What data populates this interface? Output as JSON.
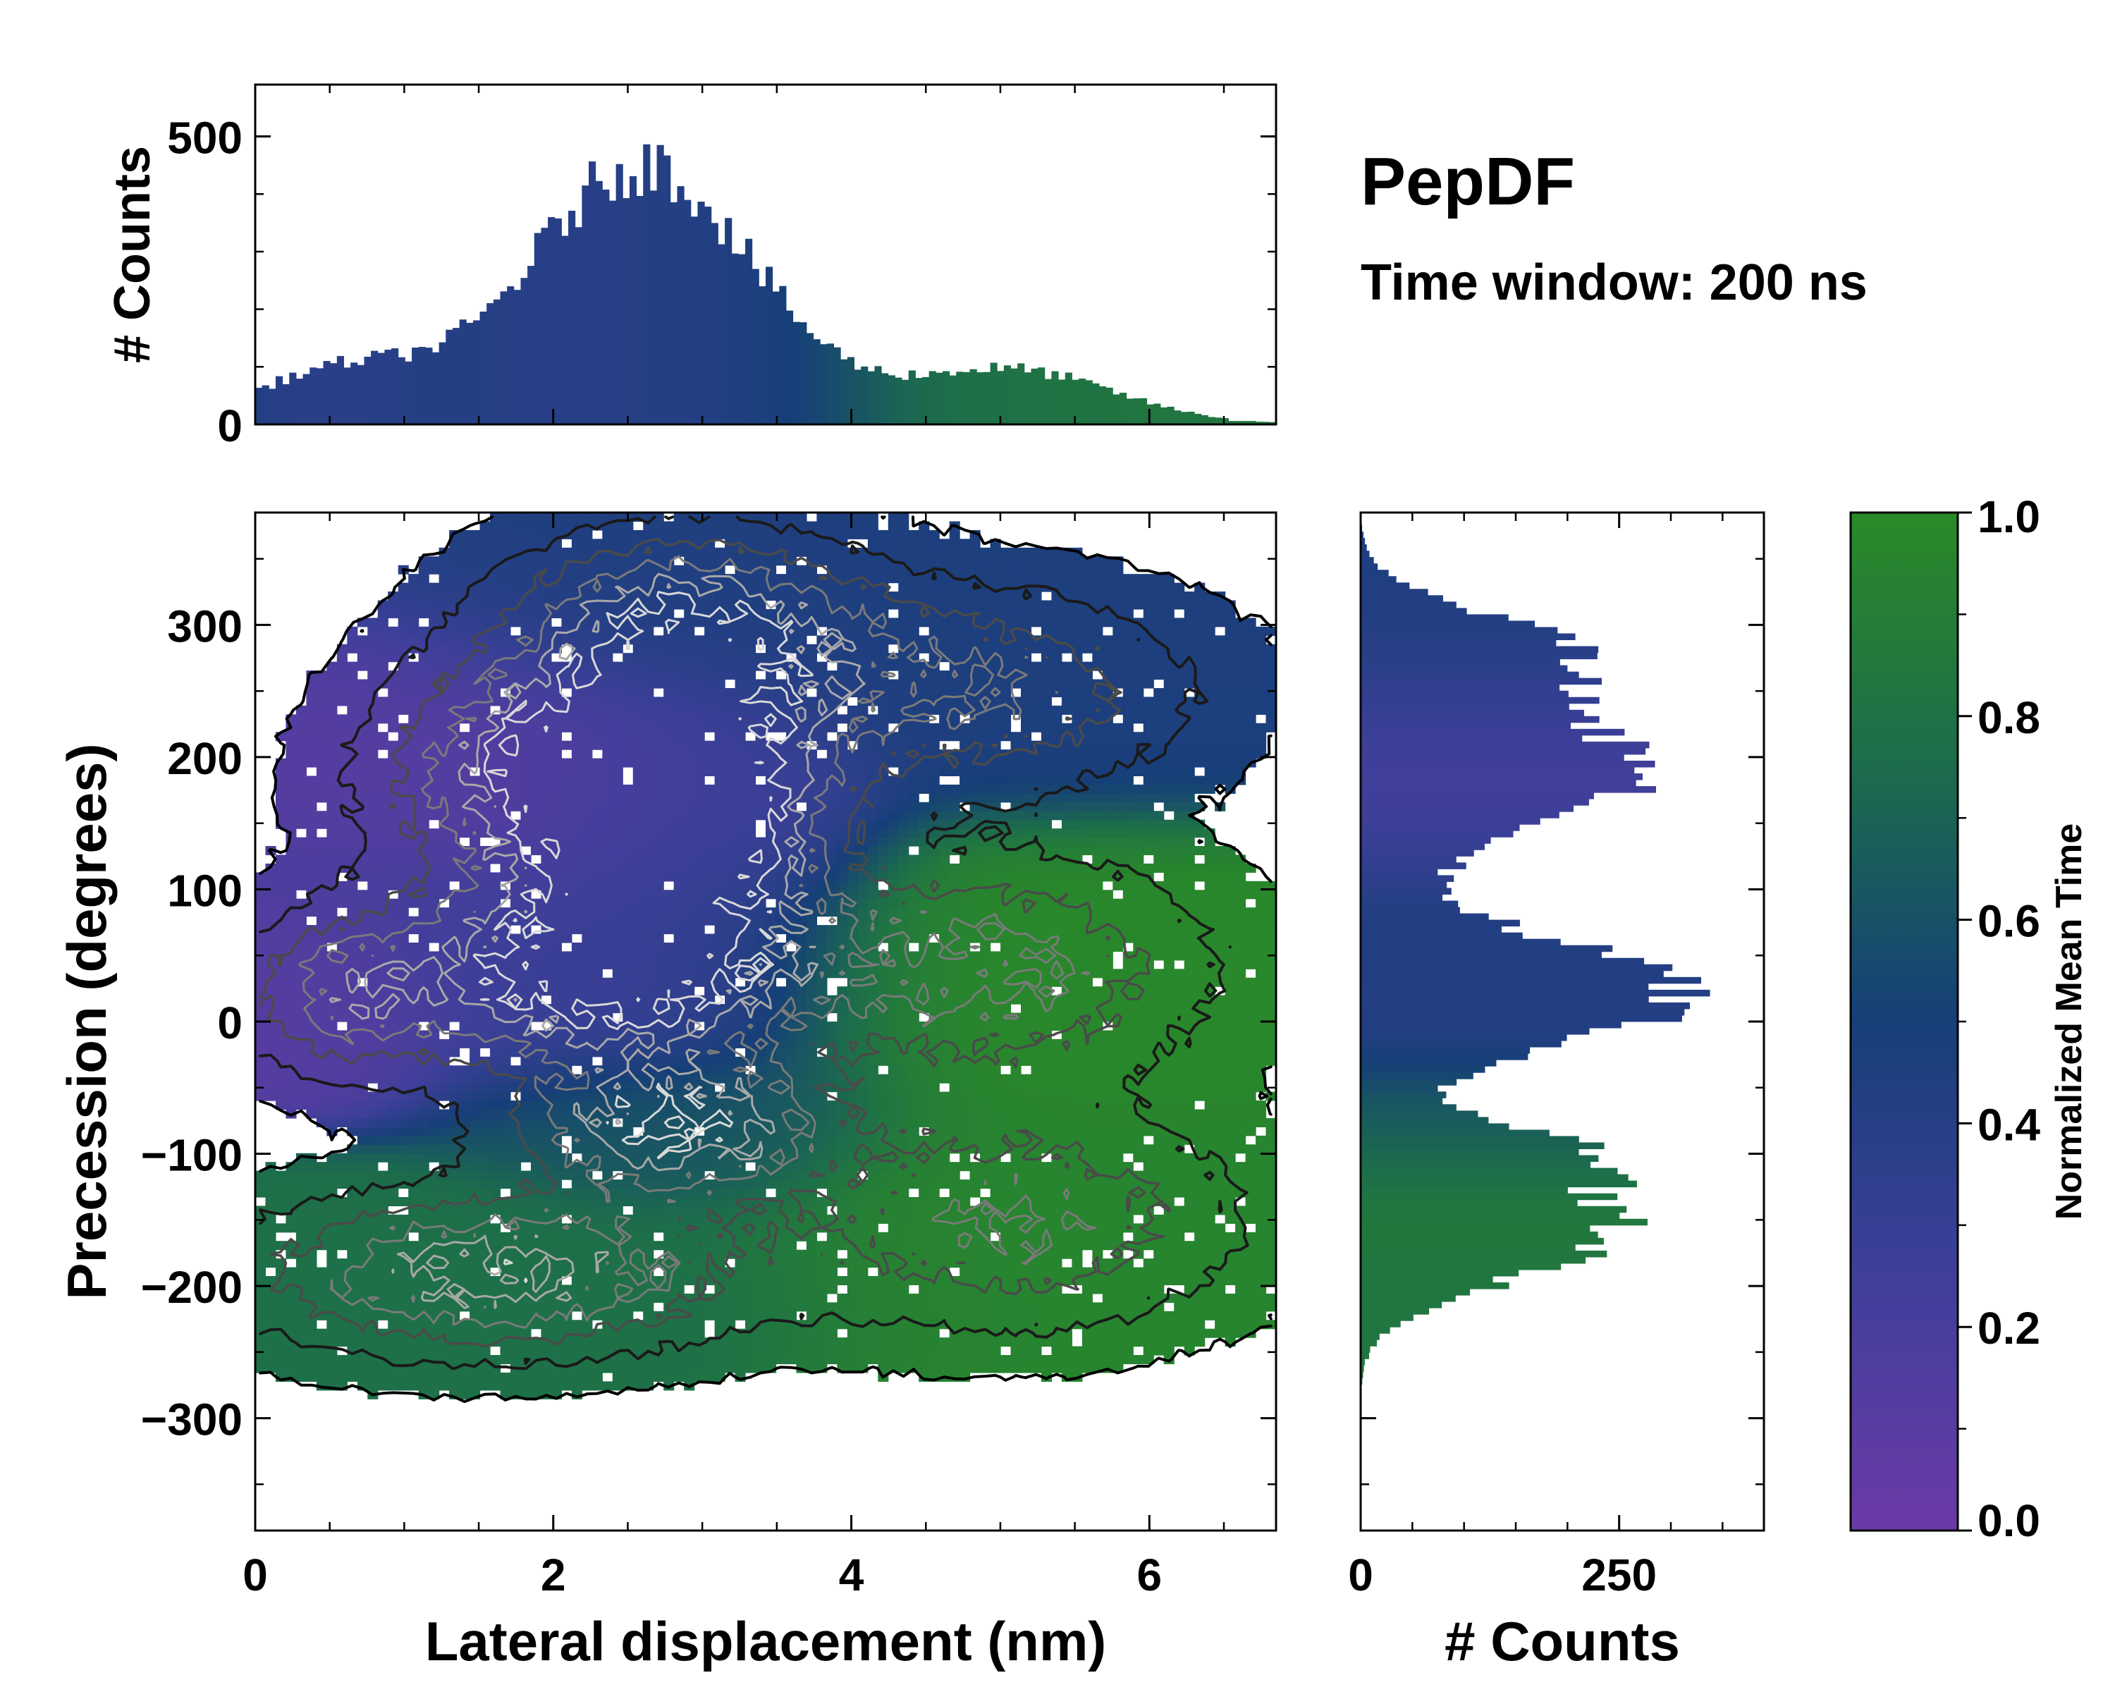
{
  "chart_data": {
    "type": "heatmap",
    "title": "PepDF",
    "subtitle": "Time window: 200 ns",
    "colormap": {
      "low_color": "#6b3aa6",
      "mid_color": "#1e4a86",
      "high_color": "#2a8a28",
      "stops": [
        {
          "v": 0.0,
          "color": "#6b3aa6"
        },
        {
          "v": 0.25,
          "color": "#3f3f9a"
        },
        {
          "v": 0.5,
          "color": "#163f78"
        },
        {
          "v": 0.75,
          "color": "#1c6c4c"
        },
        {
          "v": 1.0,
          "color": "#2a8a28"
        }
      ]
    },
    "main": {
      "xlabel": "Lateral displacement (nm)",
      "ylabel": "Precession (degrees)",
      "xlim": [
        0,
        6.85
      ],
      "ylim": [
        -385,
        385
      ],
      "xticks": [
        0,
        2,
        4,
        6
      ],
      "yticks": [
        300,
        200,
        100,
        0,
        -100,
        -200,
        -300
      ],
      "xtick_labels": [
        "0",
        "2",
        "4",
        "6"
      ],
      "ytick_labels": [
        "300",
        "200",
        "100",
        "0",
        "−100",
        "−200",
        "−300"
      ],
      "clusters": [
        {
          "name": "upper-right-blue",
          "x": 4.8,
          "y": 250,
          "sx": 1.0,
          "sy": 50,
          "mt": 0.46,
          "peak": 0.5
        },
        {
          "name": "top-blue",
          "x": 2.9,
          "y": 300,
          "sx": 0.8,
          "sy": 45,
          "mt": 0.45,
          "peak": 0.8
        },
        {
          "name": "purple-left",
          "x": 2.1,
          "y": 190,
          "sx": 0.8,
          "sy": 55,
          "mt": 0.12,
          "peak": 0.9
        },
        {
          "name": "central-dense",
          "x": 2.9,
          "y": 160,
          "sx": 0.6,
          "sy": 60,
          "mt": 0.3,
          "peak": 1.0
        },
        {
          "name": "mid-purple",
          "x": 2.3,
          "y": 40,
          "sx": 0.9,
          "sy": 50,
          "mt": 0.28,
          "peak": 1.0
        },
        {
          "name": "left-purple",
          "x": 0.6,
          "y": 20,
          "sx": 0.5,
          "sy": 40,
          "mt": 0.1,
          "peak": 0.5
        },
        {
          "name": "teal-middle",
          "x": 2.8,
          "y": -80,
          "sx": 0.7,
          "sy": 35,
          "mt": 0.62,
          "peak": 0.8
        },
        {
          "name": "green-right",
          "x": 4.9,
          "y": 40,
          "sx": 1.0,
          "sy": 55,
          "mt": 0.98,
          "peak": 0.55
        },
        {
          "name": "green-lower-right",
          "x": 5.1,
          "y": -150,
          "sx": 1.0,
          "sy": 55,
          "mt": 0.95,
          "peak": 0.5
        },
        {
          "name": "green-lower-left",
          "x": 1.6,
          "y": -190,
          "sx": 1.1,
          "sy": 40,
          "mt": 0.78,
          "peak": 0.75
        }
      ]
    },
    "top_histogram": {
      "ylabel": "# Counts",
      "ylim": [
        0,
        590
      ],
      "yticks": [
        0,
        500
      ],
      "ytick_labels": [
        "0",
        "500"
      ],
      "components": [
        {
          "mu": 2.6,
          "sigma": 0.75,
          "amp": 450
        },
        {
          "mu": 0.6,
          "sigma": 0.6,
          "amp": 95
        },
        {
          "mu": 5.05,
          "sigma": 0.7,
          "amp": 95
        }
      ]
    },
    "right_histogram": {
      "xlabel": "# Counts",
      "xlim": [
        0,
        390
      ],
      "xticks": [
        0,
        250
      ],
      "xtick_labels": [
        "0",
        "250"
      ],
      "components": [
        {
          "mu": 280,
          "sigma": 30,
          "amp": 180
        },
        {
          "mu": 190,
          "sigma": 45,
          "amp": 270
        },
        {
          "mu": 20,
          "sigma": 40,
          "amp": 320
        },
        {
          "mu": -100,
          "sigma": 22,
          "amp": 170
        },
        {
          "mu": -160,
          "sigma": 35,
          "amp": 240
        }
      ]
    },
    "colorbar": {
      "label": "Normalized Mean Time",
      "ticks": [
        0.0,
        0.2,
        0.4,
        0.6,
        0.8,
        1.0
      ],
      "tick_labels": [
        "0.0",
        "0.2",
        "0.4",
        "0.6",
        "0.8",
        "1.0"
      ]
    }
  }
}
